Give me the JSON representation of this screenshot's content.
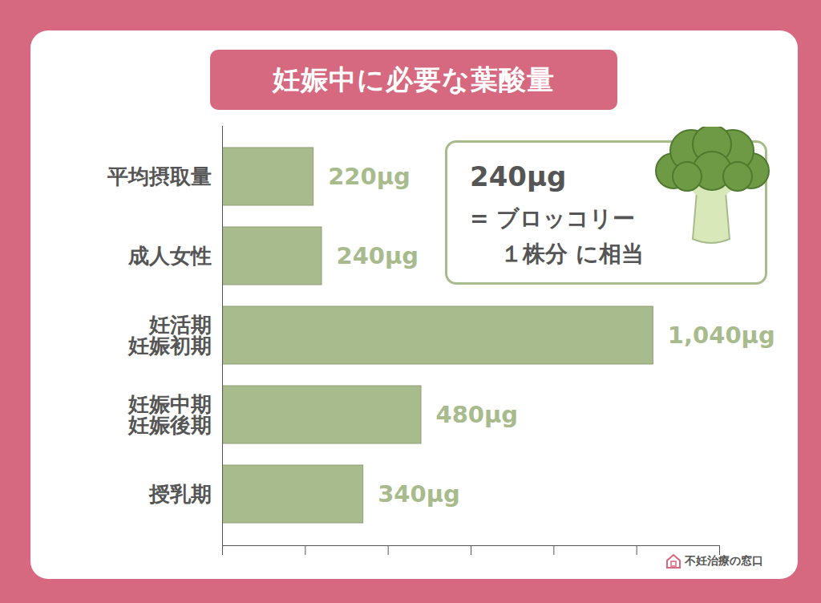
{
  "chart_data": {
    "type": "bar",
    "title": "妊娠中に必要な葉酸量",
    "orientation": "horizontal",
    "categories": [
      "平均摂取量",
      "成人女性",
      "妊活期\n妊娠初期",
      "妊娠中期\n妊娠後期",
      "授乳期"
    ],
    "values": [
      220,
      240,
      1040,
      480,
      340
    ],
    "value_labels": [
      "220µg",
      "240µg",
      "1,040µg",
      "480µg",
      "340µg"
    ],
    "data_labels": true,
    "color": "#a8bb8d",
    "xlim": [
      0,
      1200
    ],
    "xticks": [
      0,
      200,
      400,
      600,
      800,
      1000,
      1200
    ],
    "tick_labels": "y",
    "grid": false,
    "annotations": [
      "240µg",
      "= ブロッコリー",
      "１株分 に相当"
    ],
    "source": "不妊治療の窓口"
  }
}
